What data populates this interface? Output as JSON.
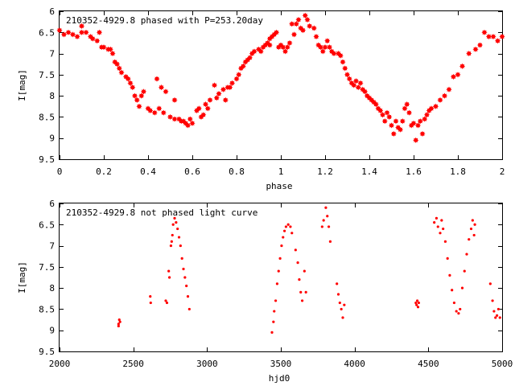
{
  "chart_data": [
    {
      "type": "scatter",
      "title": "210352-4929.8 phased with P=253.20day",
      "xlabel": "phase",
      "ylabel": "I[mag]",
      "xlim": [
        0,
        2
      ],
      "ylim": [
        6,
        9.5
      ],
      "y_inverted": true,
      "grid": false,
      "marker": "filled-star",
      "color": "#ff0000",
      "x_ticks": [
        0,
        0.2,
        0.4,
        0.6,
        0.8,
        1,
        1.2,
        1.4,
        1.6,
        1.8,
        2
      ],
      "x_tick_labels": [
        "0",
        "0.2",
        "0.4",
        "0.6",
        "0.8",
        "1",
        "1.2",
        "1.4",
        "1.6",
        "1.8",
        "2"
      ],
      "y_ticks": [
        6,
        6.5,
        7,
        7.5,
        8,
        8.5,
        9,
        9.5
      ],
      "y_tick_labels": [
        "6",
        "6.5",
        "7",
        "7.5",
        "8",
        "8.5",
        "9",
        "9.5"
      ],
      "points": [
        [
          0.0,
          6.45
        ],
        [
          0.02,
          6.55
        ],
        [
          0.04,
          6.5
        ],
        [
          0.06,
          6.55
        ],
        [
          0.08,
          6.6
        ],
        [
          0.1,
          6.5
        ],
        [
          0.1,
          6.35
        ],
        [
          0.12,
          6.5
        ],
        [
          0.14,
          6.6
        ],
        [
          0.15,
          6.65
        ],
        [
          0.17,
          6.7
        ],
        [
          0.18,
          6.5
        ],
        [
          0.19,
          6.85
        ],
        [
          0.2,
          6.85
        ],
        [
          0.22,
          6.9
        ],
        [
          0.23,
          6.9
        ],
        [
          0.24,
          7.0
        ],
        [
          0.25,
          7.2
        ],
        [
          0.26,
          7.25
        ],
        [
          0.27,
          7.35
        ],
        [
          0.28,
          7.45
        ],
        [
          0.3,
          7.55
        ],
        [
          0.31,
          7.6
        ],
        [
          0.32,
          7.7
        ],
        [
          0.33,
          7.8
        ],
        [
          0.34,
          8.0
        ],
        [
          0.35,
          8.1
        ],
        [
          0.36,
          8.25
        ],
        [
          0.37,
          8.0
        ],
        [
          0.38,
          7.9
        ],
        [
          0.4,
          8.3
        ],
        [
          0.41,
          8.35
        ],
        [
          0.43,
          8.4
        ],
        [
          0.44,
          7.6
        ],
        [
          0.45,
          8.3
        ],
        [
          0.46,
          7.8
        ],
        [
          0.47,
          8.4
        ],
        [
          0.48,
          7.9
        ],
        [
          0.5,
          8.5
        ],
        [
          0.52,
          8.55
        ],
        [
          0.52,
          8.1
        ],
        [
          0.54,
          8.55
        ],
        [
          0.55,
          8.6
        ],
        [
          0.56,
          8.6
        ],
        [
          0.57,
          8.65
        ],
        [
          0.58,
          8.7
        ],
        [
          0.59,
          8.55
        ],
        [
          0.6,
          8.65
        ],
        [
          0.62,
          8.35
        ],
        [
          0.63,
          8.3
        ],
        [
          0.64,
          8.5
        ],
        [
          0.65,
          8.45
        ],
        [
          0.66,
          8.2
        ],
        [
          0.67,
          8.3
        ],
        [
          0.68,
          8.1
        ],
        [
          0.7,
          7.75
        ],
        [
          0.71,
          8.05
        ],
        [
          0.72,
          7.95
        ],
        [
          0.74,
          7.85
        ],
        [
          0.75,
          8.1
        ],
        [
          0.76,
          7.8
        ],
        [
          0.77,
          7.8
        ],
        [
          0.78,
          7.7
        ],
        [
          0.8,
          7.6
        ],
        [
          0.81,
          7.5
        ],
        [
          0.82,
          7.35
        ],
        [
          0.83,
          7.3
        ],
        [
          0.84,
          7.2
        ],
        [
          0.85,
          7.15
        ],
        [
          0.86,
          7.1
        ],
        [
          0.87,
          7.0
        ],
        [
          0.88,
          6.95
        ],
        [
          0.9,
          6.9
        ],
        [
          0.91,
          6.95
        ],
        [
          0.92,
          6.85
        ],
        [
          0.93,
          6.8
        ],
        [
          0.94,
          6.75
        ],
        [
          0.95,
          6.65
        ],
        [
          0.95,
          6.8
        ],
        [
          0.96,
          6.6
        ],
        [
          0.97,
          6.55
        ],
        [
          0.98,
          6.5
        ],
        [
          0.99,
          6.85
        ],
        [
          1.0,
          6.8
        ],
        [
          1.01,
          6.85
        ],
        [
          1.02,
          6.95
        ],
        [
          1.03,
          6.85
        ],
        [
          1.04,
          6.75
        ],
        [
          1.05,
          6.3
        ],
        [
          1.06,
          6.55
        ],
        [
          1.07,
          6.3
        ],
        [
          1.08,
          6.2
        ],
        [
          1.09,
          6.4
        ],
        [
          1.1,
          6.45
        ],
        [
          1.11,
          6.1
        ],
        [
          1.12,
          6.2
        ],
        [
          1.13,
          6.35
        ],
        [
          1.15,
          6.4
        ],
        [
          1.16,
          6.6
        ],
        [
          1.17,
          6.8
        ],
        [
          1.18,
          6.85
        ],
        [
          1.19,
          6.95
        ],
        [
          1.2,
          6.85
        ],
        [
          1.21,
          6.7
        ],
        [
          1.22,
          6.85
        ],
        [
          1.23,
          6.95
        ],
        [
          1.24,
          7.0
        ],
        [
          1.26,
          7.0
        ],
        [
          1.27,
          7.05
        ],
        [
          1.28,
          7.2
        ],
        [
          1.29,
          7.35
        ],
        [
          1.3,
          7.5
        ],
        [
          1.31,
          7.6
        ],
        [
          1.32,
          7.7
        ],
        [
          1.33,
          7.75
        ],
        [
          1.34,
          7.65
        ],
        [
          1.35,
          7.8
        ],
        [
          1.36,
          7.7
        ],
        [
          1.37,
          7.85
        ],
        [
          1.38,
          7.9
        ],
        [
          1.39,
          8.0
        ],
        [
          1.4,
          8.05
        ],
        [
          1.41,
          8.1
        ],
        [
          1.42,
          8.15
        ],
        [
          1.43,
          8.2
        ],
        [
          1.44,
          8.3
        ],
        [
          1.45,
          8.35
        ],
        [
          1.46,
          8.45
        ],
        [
          1.47,
          8.6
        ],
        [
          1.48,
          8.4
        ],
        [
          1.49,
          8.5
        ],
        [
          1.5,
          8.7
        ],
        [
          1.51,
          8.9
        ],
        [
          1.52,
          8.6
        ],
        [
          1.53,
          8.75
        ],
        [
          1.54,
          8.8
        ],
        [
          1.55,
          8.6
        ],
        [
          1.56,
          8.3
        ],
        [
          1.57,
          8.2
        ],
        [
          1.58,
          8.4
        ],
        [
          1.59,
          8.7
        ],
        [
          1.6,
          8.65
        ],
        [
          1.61,
          9.05
        ],
        [
          1.62,
          8.7
        ],
        [
          1.63,
          8.6
        ],
        [
          1.64,
          8.9
        ],
        [
          1.65,
          8.55
        ],
        [
          1.66,
          8.45
        ],
        [
          1.67,
          8.35
        ],
        [
          1.68,
          8.3
        ],
        [
          1.7,
          8.25
        ],
        [
          1.72,
          8.1
        ],
        [
          1.74,
          8.0
        ],
        [
          1.76,
          7.85
        ],
        [
          1.78,
          7.55
        ],
        [
          1.8,
          7.5
        ],
        [
          1.82,
          7.3
        ],
        [
          1.85,
          7.0
        ],
        [
          1.88,
          6.9
        ],
        [
          1.9,
          6.8
        ],
        [
          1.92,
          6.5
        ],
        [
          1.94,
          6.6
        ],
        [
          1.96,
          6.6
        ],
        [
          1.98,
          6.7
        ],
        [
          2.0,
          6.6
        ]
      ]
    },
    {
      "type": "scatter",
      "title": "210352-4929.8 not phased light curve",
      "xlabel": "hjd0",
      "ylabel": "I[mag]",
      "xlim": [
        2000,
        5000
      ],
      "ylim": [
        6,
        9.5
      ],
      "y_inverted": true,
      "grid": false,
      "marker": "small-dot",
      "color": "#ff0000",
      "x_ticks": [
        2000,
        2500,
        3000,
        3500,
        4000,
        4500,
        5000
      ],
      "x_tick_labels": [
        "2000",
        "2500",
        "3000",
        "3500",
        "4000",
        "4500",
        "5000"
      ],
      "y_ticks": [
        6,
        6.5,
        7,
        7.5,
        8,
        8.5,
        9,
        9.5
      ],
      "y_tick_labels": [
        "6",
        "6.5",
        "7",
        "7.5",
        "8",
        "8.5",
        "9",
        "9.5"
      ],
      "points": [
        [
          2400,
          8.9
        ],
        [
          2400,
          8.85
        ],
        [
          2405,
          8.75
        ],
        [
          2410,
          8.8
        ],
        [
          2615,
          8.2
        ],
        [
          2618,
          8.35
        ],
        [
          2720,
          8.3
        ],
        [
          2728,
          8.35
        ],
        [
          2740,
          7.6
        ],
        [
          2745,
          7.75
        ],
        [
          2755,
          7.0
        ],
        [
          2760,
          6.9
        ],
        [
          2765,
          6.75
        ],
        [
          2770,
          6.5
        ],
        [
          2780,
          6.35
        ],
        [
          2790,
          6.45
        ],
        [
          2800,
          6.6
        ],
        [
          2810,
          6.8
        ],
        [
          2820,
          7.0
        ],
        [
          2830,
          7.3
        ],
        [
          2840,
          7.55
        ],
        [
          2850,
          7.75
        ],
        [
          2860,
          7.95
        ],
        [
          2870,
          8.2
        ],
        [
          2880,
          8.5
        ],
        [
          3440,
          9.05
        ],
        [
          3450,
          8.8
        ],
        [
          3455,
          8.55
        ],
        [
          3465,
          8.3
        ],
        [
          3475,
          7.9
        ],
        [
          3485,
          7.6
        ],
        [
          3495,
          7.3
        ],
        [
          3505,
          7.0
        ],
        [
          3515,
          6.8
        ],
        [
          3525,
          6.65
        ],
        [
          3535,
          6.55
        ],
        [
          3550,
          6.5
        ],
        [
          3565,
          6.55
        ],
        [
          3575,
          6.7
        ],
        [
          3600,
          7.1
        ],
        [
          3615,
          7.4
        ],
        [
          3625,
          7.8
        ],
        [
          3635,
          8.1
        ],
        [
          3645,
          8.3
        ],
        [
          3660,
          7.6
        ],
        [
          3670,
          8.1
        ],
        [
          3780,
          6.55
        ],
        [
          3790,
          6.4
        ],
        [
          3805,
          6.1
        ],
        [
          3815,
          6.3
        ],
        [
          3825,
          6.55
        ],
        [
          3835,
          6.9
        ],
        [
          3880,
          7.9
        ],
        [
          3890,
          8.15
        ],
        [
          3900,
          8.35
        ],
        [
          3910,
          8.5
        ],
        [
          3920,
          8.7
        ],
        [
          3930,
          8.4
        ],
        [
          4415,
          8.35
        ],
        [
          4420,
          8.4
        ],
        [
          4425,
          8.3
        ],
        [
          4430,
          8.45
        ],
        [
          4435,
          8.35
        ],
        [
          4540,
          6.45
        ],
        [
          4555,
          6.35
        ],
        [
          4565,
          6.55
        ],
        [
          4580,
          6.7
        ],
        [
          4590,
          6.4
        ],
        [
          4600,
          6.6
        ],
        [
          4615,
          6.9
        ],
        [
          4630,
          7.3
        ],
        [
          4645,
          7.7
        ],
        [
          4660,
          8.05
        ],
        [
          4675,
          8.35
        ],
        [
          4690,
          8.55
        ],
        [
          4705,
          8.6
        ],
        [
          4715,
          8.5
        ],
        [
          4730,
          8.0
        ],
        [
          4745,
          7.6
        ],
        [
          4760,
          7.2
        ],
        [
          4775,
          6.85
        ],
        [
          4790,
          6.6
        ],
        [
          4800,
          6.4
        ],
        [
          4810,
          6.75
        ],
        [
          4815,
          6.5
        ],
        [
          4920,
          7.9
        ],
        [
          4935,
          8.3
        ],
        [
          4945,
          8.55
        ],
        [
          4955,
          8.7
        ],
        [
          4965,
          8.65
        ],
        [
          4975,
          8.5
        ],
        [
          4985,
          8.7
        ]
      ]
    }
  ]
}
